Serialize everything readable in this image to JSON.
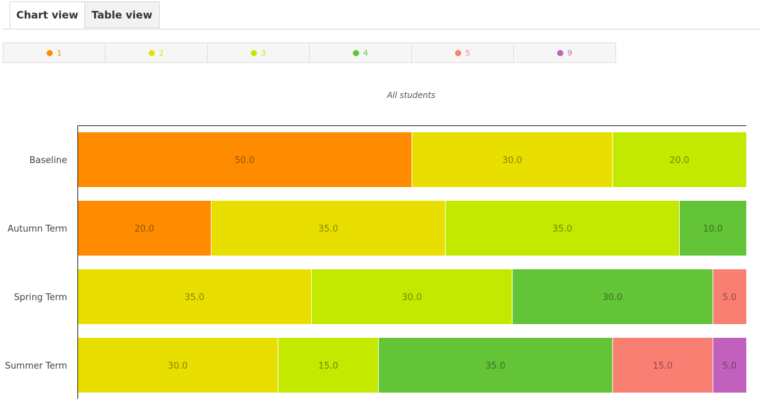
{
  "tabs": [
    {
      "label": "Chart view",
      "active": true
    },
    {
      "label": "Table view",
      "active": false
    }
  ],
  "colors": {
    "1": "#ff8c00",
    "2": "#e8df00",
    "3": "#c3e900",
    "4": "#62c436",
    "5": "#f97f72",
    "9": "#c261bd"
  },
  "legend": [
    {
      "label": "1",
      "color": "#ff8c00"
    },
    {
      "label": "2",
      "color": "#e8df00"
    },
    {
      "label": "3",
      "color": "#c3e900"
    },
    {
      "label": "4",
      "color": "#62c436"
    },
    {
      "label": "5",
      "color": "#f97f72"
    },
    {
      "label": "9",
      "color": "#c261bd"
    }
  ],
  "chart_data": {
    "type": "bar",
    "orientation": "horizontal",
    "stacked": true,
    "title": "",
    "subtitle": "All students",
    "categories": [
      "Baseline",
      "Autumn Term",
      "Spring Term",
      "Summer Term"
    ],
    "series": [
      {
        "name": "1",
        "values": [
          50.0,
          20.0,
          0,
          0
        ]
      },
      {
        "name": "2",
        "values": [
          30.0,
          35.0,
          35.0,
          30.0
        ]
      },
      {
        "name": "3",
        "values": [
          20.0,
          35.0,
          30.0,
          15.0
        ]
      },
      {
        "name": "4",
        "values": [
          0,
          10.0,
          30.0,
          35.0
        ]
      },
      {
        "name": "5",
        "values": [
          0,
          0,
          5.0,
          15.0
        ]
      },
      {
        "name": "9",
        "values": [
          0,
          0,
          0,
          5.0
        ]
      }
    ],
    "xlim": [
      0,
      100
    ],
    "grid": false,
    "legend_position": "top"
  }
}
